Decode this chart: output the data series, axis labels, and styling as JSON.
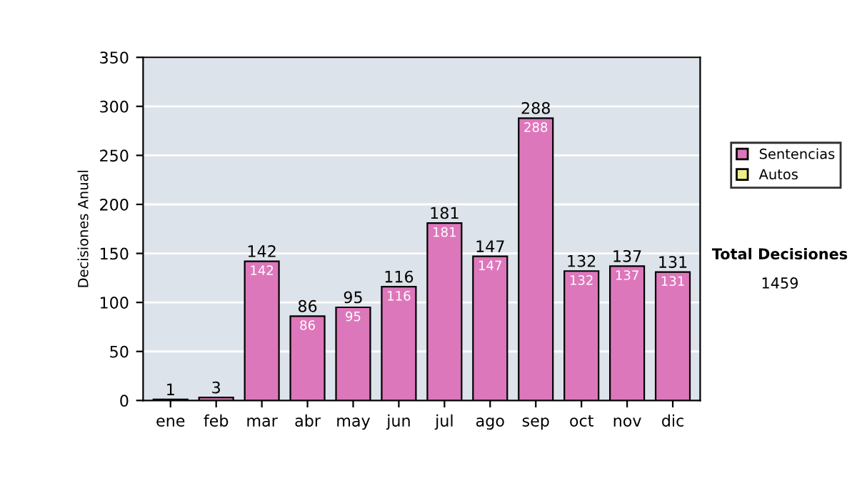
{
  "chart_data": {
    "type": "bar",
    "stacked": true,
    "ylabel": "Decisiones Anual",
    "categories": [
      "ene",
      "feb",
      "mar",
      "abr",
      "may",
      "jun",
      "jul",
      "ago",
      "sep",
      "oct",
      "nov",
      "dic"
    ],
    "series": [
      {
        "name": "Sentencias",
        "color": "#dd77bb",
        "values": [
          1,
          3,
          142,
          86,
          95,
          116,
          181,
          147,
          288,
          132,
          137,
          131
        ],
        "value_labels": [
          null,
          null,
          "142",
          "86",
          "95",
          "116",
          "181",
          "147",
          "288",
          "132",
          "137",
          "131"
        ]
      },
      {
        "name": "Autos",
        "color": "#eeee88",
        "values": [
          0,
          0,
          0,
          0,
          0,
          0,
          0,
          0,
          0,
          0,
          0,
          0
        ]
      }
    ],
    "totals": [
      "1",
      "3",
      "142",
      "86",
      "95",
      "116",
      "181",
      "147",
      "288",
      "132",
      "137",
      "131"
    ],
    "ylim": [
      0,
      350
    ],
    "yticks": [
      0,
      50,
      100,
      150,
      200,
      250,
      300,
      350
    ],
    "grid": "y",
    "legend": "right",
    "annotations": [
      "Total Decisiones",
      "1459"
    ]
  }
}
